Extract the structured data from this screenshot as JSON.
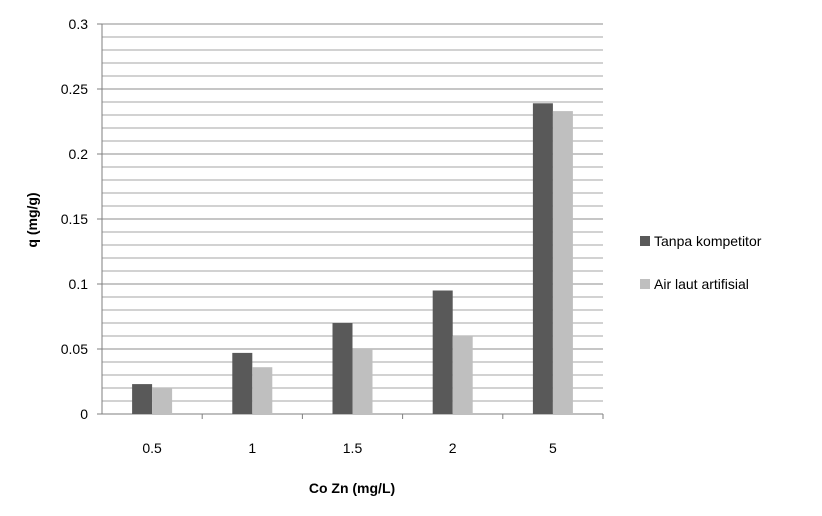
{
  "chart_data": {
    "type": "bar",
    "title": "",
    "xlabel": "Co Zn (mg/L)",
    "ylabel": "q (mg/g)",
    "categories": [
      "0.5",
      "1",
      "1.5",
      "2",
      "5"
    ],
    "series": [
      {
        "name": "Tanpa kompetitor",
        "values": [
          0.023,
          0.047,
          0.07,
          0.095,
          0.239
        ],
        "color": "#595959"
      },
      {
        "name": "Air laut artifisial",
        "values": [
          0.02,
          0.036,
          0.05,
          0.06,
          0.233
        ],
        "color": "#bfbfbf"
      }
    ],
    "ylim": [
      0,
      0.3
    ],
    "yticks": [
      "0",
      "0.05",
      "0.1",
      "0.15",
      "0.2",
      "0.25",
      "0.3"
    ],
    "minor_grid_step": 0.01,
    "grid": true,
    "legend_position": "right"
  }
}
